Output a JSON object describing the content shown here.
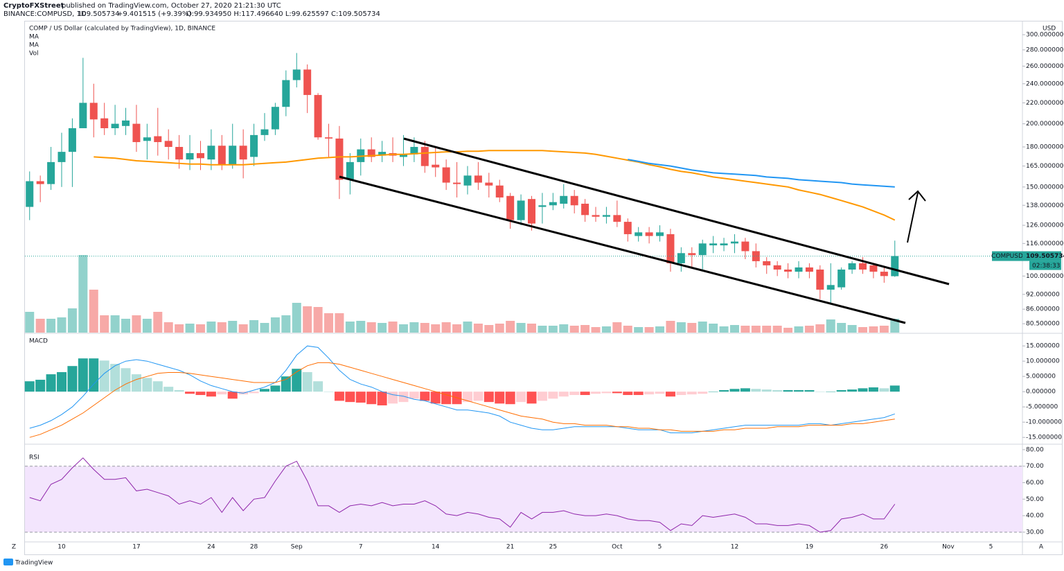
{
  "header": {
    "author": "CryptoFXStreet",
    "published": "published on TradingView.com, October 27, 2020 21:21:30 UTC",
    "symbol": "BINANCE:COMPUSD, 1D",
    "change": "+9.401515 (+9.39%)",
    "ohlc": "O:99.934950 H:117.496640 L:99.625597 C:109.505734"
  },
  "chart_data": {
    "type": "candlestick",
    "title": "COMP / US Dollar (calculated by TradingView), 1D, BINANCE",
    "currency": "USD",
    "log_scale": true,
    "grid": false,
    "up_color": "#26a69a",
    "down_color": "#ef5350",
    "categories": [
      null,
      null,
      null,
      "10",
      null,
      null,
      null,
      null,
      null,
      null,
      "17",
      null,
      null,
      null,
      null,
      null,
      null,
      "24",
      null,
      null,
      null,
      "28",
      null,
      null,
      null,
      "Sep",
      null,
      null,
      null,
      null,
      null,
      "7",
      null,
      null,
      null,
      null,
      null,
      null,
      "14",
      null,
      null,
      null,
      null,
      null,
      null,
      "21",
      null,
      null,
      null,
      "25",
      null,
      null,
      null,
      null,
      null,
      "Oct",
      null,
      null,
      null,
      "5",
      null,
      null,
      null,
      null,
      null,
      null,
      "12",
      null,
      null,
      null,
      null,
      null,
      null,
      "19",
      null,
      null,
      null,
      null,
      null,
      null,
      "26",
      null,
      null,
      null,
      null,
      null,
      "Nov",
      null,
      null,
      null,
      "5",
      null,
      null
    ],
    "open": [
      137,
      154,
      152,
      168,
      176,
      196,
      220,
      205,
      196,
      198,
      200,
      185,
      189,
      185,
      180,
      170,
      175,
      170,
      181,
      166,
      181,
      172,
      190,
      195,
      216,
      244,
      256,
      228,
      188,
      187,
      155,
      168,
      178,
      173,
      175,
      172,
      174,
      180,
      166,
      164,
      153,
      151,
      158,
      153,
      151,
      144,
      129,
      142,
      137,
      138,
      139,
      144,
      139,
      132,
      131,
      132,
      128,
      120,
      122,
      120,
      121,
      106,
      111,
      110,
      115,
      115,
      116,
      117,
      112,
      107,
      105,
      103,
      102,
      104,
      103,
      94,
      95,
      103,
      106,
      105,
      102,
      99.93495,
      null,
      null,
      null,
      null,
      null,
      null,
      null,
      null,
      null,
      null,
      null
    ],
    "high": [
      161,
      158,
      180,
      192,
      205,
      270,
      240,
      220,
      218,
      215,
      218,
      200,
      215,
      195,
      190,
      190,
      185,
      195,
      190,
      200,
      195,
      200,
      210,
      220,
      255,
      276,
      262,
      230,
      200,
      198,
      175,
      187,
      188,
      185,
      188,
      190,
      188,
      185,
      180,
      170,
      168,
      165,
      168,
      160,
      155,
      146,
      145,
      144,
      146,
      146,
      152,
      148,
      142,
      137,
      137,
      141,
      130,
      125,
      125,
      126,
      124,
      114,
      114,
      118,
      120,
      119,
      121,
      119,
      116,
      109,
      107,
      106,
      107,
      106,
      105,
      106,
      104,
      107,
      109,
      106,
      104,
      117.49664,
      null,
      null,
      null,
      null,
      null,
      null,
      null,
      null,
      null,
      null,
      null
    ],
    "low": [
      129,
      140,
      148,
      150,
      150,
      196,
      188,
      190,
      190,
      190,
      176,
      170,
      173,
      170,
      163,
      162,
      162,
      162,
      162,
      163,
      156,
      165,
      185,
      190,
      207,
      236,
      210,
      186,
      172,
      142,
      145,
      158,
      168,
      168,
      168,
      165,
      168,
      160,
      157,
      148,
      143,
      145,
      148,
      143,
      140,
      124,
      126,
      123,
      127,
      135,
      136,
      133,
      128,
      128,
      127,
      125,
      117,
      117,
      116,
      117,
      102,
      102,
      104,
      103,
      111,
      112,
      111,
      108,
      104,
      101,
      100,
      99,
      99,
      99,
      90,
      88,
      94,
      101,
      101,
      99,
      97,
      99.625597,
      null,
      null,
      null,
      null,
      null,
      null,
      null,
      null,
      null,
      null,
      null
    ],
    "close": [
      154,
      152,
      168,
      176,
      196,
      220,
      204,
      196,
      200,
      203,
      184,
      188,
      184,
      180,
      170,
      175,
      171,
      181,
      166,
      181,
      170,
      190,
      195,
      216,
      244,
      256,
      228,
      188,
      187,
      155,
      168,
      178,
      172,
      176,
      173,
      174,
      180,
      165,
      164,
      153,
      152,
      158,
      153,
      151,
      143,
      129,
      141,
      127,
      138,
      140,
      144,
      138,
      132,
      131,
      132,
      128,
      121,
      122,
      120,
      122,
      106,
      111,
      110,
      116,
      116,
      116,
      117,
      112,
      107,
      105,
      103,
      102,
      104,
      102,
      94,
      96,
      103,
      106,
      103,
      102,
      100,
      109.505734,
      null,
      null,
      null,
      null,
      null,
      null,
      null,
      null,
      null,
      null,
      null
    ],
    "volume_label": "Vol",
    "volume": [
      30,
      20,
      20,
      22,
      35,
      112,
      62,
      25,
      25,
      20,
      25,
      20,
      30,
      15,
      12,
      13,
      12,
      16,
      15,
      17,
      12,
      18,
      14,
      22,
      25,
      43,
      38,
      37,
      28,
      28,
      16,
      17,
      15,
      14,
      16,
      12,
      15,
      14,
      12,
      15,
      12,
      16,
      13,
      11,
      13,
      17,
      14,
      13,
      10,
      10,
      12,
      10,
      11,
      8,
      9,
      15,
      10,
      8,
      8,
      9,
      17,
      15,
      14,
      16,
      13,
      9,
      11,
      10,
      10,
      10,
      10,
      7,
      9,
      10,
      12,
      19,
      14,
      11,
      8,
      9,
      10,
      20,
      null,
      null,
      null,
      null,
      null,
      null,
      null,
      null,
      null,
      null,
      null
    ],
    "series": [
      {
        "name": "MA",
        "color": "#ff9800",
        "values": [
          null,
          null,
          null,
          null,
          null,
          null,
          172,
          171.5,
          171,
          170,
          169,
          168.5,
          168,
          167.5,
          167,
          166.5,
          166.5,
          166,
          166,
          166,
          166,
          166.5,
          167,
          167.5,
          168,
          169,
          170,
          171,
          171.5,
          172,
          172,
          172.5,
          173,
          173.5,
          174,
          174,
          174.5,
          175,
          175.5,
          176,
          176,
          176.5,
          176.5,
          177,
          177,
          177,
          177,
          177,
          177,
          176.5,
          176,
          175.5,
          175,
          174,
          172.5,
          171,
          169.5,
          168,
          166,
          164.5,
          162.5,
          161,
          160,
          158.5,
          157,
          156,
          155,
          154,
          153,
          152,
          151,
          150,
          148,
          146.5,
          145,
          143,
          141,
          139,
          137,
          134.5,
          132,
          129,
          null,
          null,
          null,
          null,
          null,
          null,
          null,
          null,
          null,
          null,
          null
        ]
      },
      {
        "name": "MA",
        "color": "#2196f3",
        "values": [
          null,
          null,
          null,
          null,
          null,
          null,
          null,
          null,
          null,
          null,
          null,
          null,
          null,
          null,
          null,
          null,
          null,
          null,
          null,
          null,
          null,
          null,
          null,
          null,
          null,
          null,
          null,
          null,
          null,
          null,
          null,
          null,
          null,
          null,
          null,
          null,
          null,
          null,
          null,
          null,
          null,
          null,
          null,
          null,
          null,
          null,
          null,
          null,
          null,
          null,
          null,
          null,
          null,
          null,
          null,
          null,
          170,
          168.5,
          167,
          166,
          165,
          163.5,
          162,
          161,
          160,
          159.5,
          159,
          158.5,
          158,
          157,
          156.5,
          156,
          155,
          154.5,
          154,
          153.5,
          153,
          152,
          151.5,
          151,
          150.5,
          150,
          null,
          null,
          null,
          null,
          null,
          null,
          null,
          null,
          null,
          null,
          null
        ]
      }
    ],
    "ylim": [
      77.3,
      314.6
    ],
    "yticks": [
      {
        "value": 300,
        "label": "300.000000"
      },
      {
        "value": 280,
        "label": "280.000000"
      },
      {
        "value": 260,
        "label": "260.000000"
      },
      {
        "value": 240,
        "label": "240.000000"
      },
      {
        "value": 220,
        "label": "220.000000"
      },
      {
        "value": 200,
        "label": "200.000000"
      },
      {
        "value": 180,
        "label": "180.000000"
      },
      {
        "value": 165,
        "label": "165.000000"
      },
      {
        "value": 150,
        "label": "150.000000"
      },
      {
        "value": 138,
        "label": "138.000000"
      },
      {
        "value": 126,
        "label": "126.000000"
      },
      {
        "value": 116,
        "label": "116.000000"
      },
      {
        "value": 100,
        "label": "100.000000"
      },
      {
        "value": 92,
        "label": "92.000000"
      },
      {
        "value": 86,
        "label": "86.000000"
      },
      {
        "value": 80.5,
        "label": "80.500000"
      }
    ],
    "price_tag": {
      "symbol": "COMPUSD",
      "countdown": "02:38:33"
    },
    "macd": {
      "title": "MACD",
      "hist_colors": [
        "#26a69a",
        "#b2dfdb",
        "#ff5252",
        "#ffcdd2"
      ],
      "histogram": [
        3.4,
        3.9,
        5.7,
        6.4,
        8.4,
        10.9,
        10.9,
        10.2,
        9.1,
        7.7,
        5.7,
        4.5,
        3.4,
        1.6,
        0.5,
        -0.7,
        -1.1,
        -1.6,
        -0.9,
        -2.3,
        -0.9,
        -0.5,
        0.9,
        2,
        5,
        7.5,
        6.4,
        3.4,
        0,
        -3,
        -3.4,
        -3.6,
        -4.1,
        -4.5,
        -3.9,
        -3.4,
        -2.3,
        -3,
        -3.9,
        -4.1,
        -4.1,
        -3.4,
        -3,
        -3.4,
        -3.9,
        -4.1,
        -3.4,
        -3.9,
        -3,
        -2.3,
        -1.6,
        -1.1,
        -1.1,
        -0.7,
        -0.5,
        -0.5,
        -1.1,
        -1.1,
        -0.9,
        -0.7,
        -1.6,
        -1.1,
        -0.9,
        -0.7,
        0,
        0.5,
        0.9,
        1.1,
        0.9,
        0.7,
        0.5,
        0.5,
        0.5,
        0.5,
        0,
        0,
        0.5,
        0.7,
        1.1,
        1.4,
        1.1,
        2,
        null,
        null,
        null,
        null,
        null,
        null,
        null,
        null,
        null,
        null,
        null
      ],
      "series": [
        {
          "color": "#2196f3",
          "values": [
            -12,
            -11,
            -9.5,
            -7.5,
            -5,
            -1.5,
            2.5,
            6,
            8.5,
            10,
            10.5,
            10,
            9,
            8,
            7,
            5.5,
            3.5,
            2,
            1,
            0,
            -0.5,
            0.5,
            1.5,
            3,
            7,
            12,
            15,
            14.5,
            11,
            7,
            4,
            2.5,
            1.5,
            0,
            -1,
            -1.5,
            -2.5,
            -3,
            -4,
            -5,
            -6,
            -6,
            -6.5,
            -7,
            -8,
            -10,
            -11,
            -12,
            -12.5,
            -12.5,
            -12,
            -11.5,
            -11.5,
            -11.5,
            -11.5,
            -11.5,
            -12,
            -12.5,
            -12.5,
            -12.5,
            -13.5,
            -13.5,
            -13.5,
            -13,
            -12.5,
            -12,
            -11.5,
            -11,
            -11,
            -11,
            -11,
            -11,
            -11,
            -10.5,
            -10.5,
            -11,
            -10.5,
            -10,
            -9.5,
            -9,
            -8.5,
            -7.3,
            null,
            null,
            null,
            null,
            null,
            null,
            null,
            null,
            null,
            null,
            null
          ]
        },
        {
          "color": "#ff6d00",
          "values": [
            -15,
            -14,
            -12.5,
            -11,
            -9,
            -7,
            -4.5,
            -2,
            0.5,
            2.5,
            4,
            5,
            6,
            6.3,
            6.3,
            6,
            5.5,
            5,
            4.5,
            4,
            3.5,
            3,
            3,
            3,
            4,
            6.5,
            8.5,
            9.5,
            9.5,
            9,
            8,
            7,
            6,
            5,
            4,
            3,
            2,
            1,
            0,
            -1,
            -2,
            -3,
            -4,
            -5,
            -6,
            -7,
            -8,
            -8.5,
            -9,
            -10,
            -10.5,
            -10.5,
            -11,
            -11,
            -11,
            -11.5,
            -11.5,
            -12,
            -12,
            -12.5,
            -12.5,
            -13,
            -13,
            -13,
            -13,
            -12.5,
            -12.5,
            -12,
            -12,
            -12,
            -11.5,
            -11.5,
            -11.5,
            -11,
            -11,
            -11,
            -11,
            -10.5,
            -10.5,
            -10,
            -9.5,
            -9,
            null,
            null,
            null,
            null,
            null,
            null,
            null,
            null,
            null,
            null,
            null
          ]
        }
      ],
      "ylim": [
        -17,
        18.9
      ],
      "yticks": [
        {
          "value": 15,
          "label": "15.000000"
        },
        {
          "value": 10,
          "label": "10.000000"
        },
        {
          "value": 5,
          "label": "5.000000"
        },
        {
          "value": 0,
          "label": "0.000000"
        },
        {
          "value": -5,
          "label": "-5.000000"
        },
        {
          "value": -10,
          "label": "-10.000000"
        },
        {
          "value": -15,
          "label": "-15.000000"
        }
      ]
    },
    "rsi": {
      "title": "RSI",
      "color": "#8e24aa",
      "band": [
        30,
        70
      ],
      "band_color": "#f3e5fd",
      "values": [
        51,
        49,
        59,
        62,
        69,
        75,
        68,
        62,
        62,
        63,
        55,
        56,
        54,
        52,
        47,
        49,
        47,
        51,
        42,
        51,
        43,
        50,
        51,
        61,
        70,
        73,
        61,
        46,
        46,
        42,
        46,
        47,
        46,
        48,
        46,
        47,
        47,
        49,
        46,
        41,
        40,
        42,
        41,
        39,
        38,
        33,
        42,
        38,
        42,
        42,
        43,
        41,
        40,
        40,
        41,
        40,
        38,
        37,
        37,
        36,
        31,
        35,
        34,
        40,
        39,
        40,
        41,
        39,
        35,
        35,
        34,
        34,
        35,
        34,
        30,
        31,
        38,
        39,
        41,
        38,
        38,
        47,
        null,
        null,
        null,
        null,
        null,
        null,
        null,
        null,
        null,
        null,
        null
      ],
      "ylim": [
        24.1,
        82.9
      ],
      "yticks": [
        {
          "value": 80,
          "label": "80.00"
        },
        {
          "value": 70,
          "label": "70.00"
        },
        {
          "value": 60,
          "label": "60.00"
        },
        {
          "value": 50,
          "label": "50.00"
        },
        {
          "value": 40,
          "label": "40.00"
        },
        {
          "value": 30,
          "label": "30.00"
        }
      ]
    }
  },
  "footer": {
    "left_button": "Z",
    "right_button": "A",
    "brand": "TradingView"
  }
}
